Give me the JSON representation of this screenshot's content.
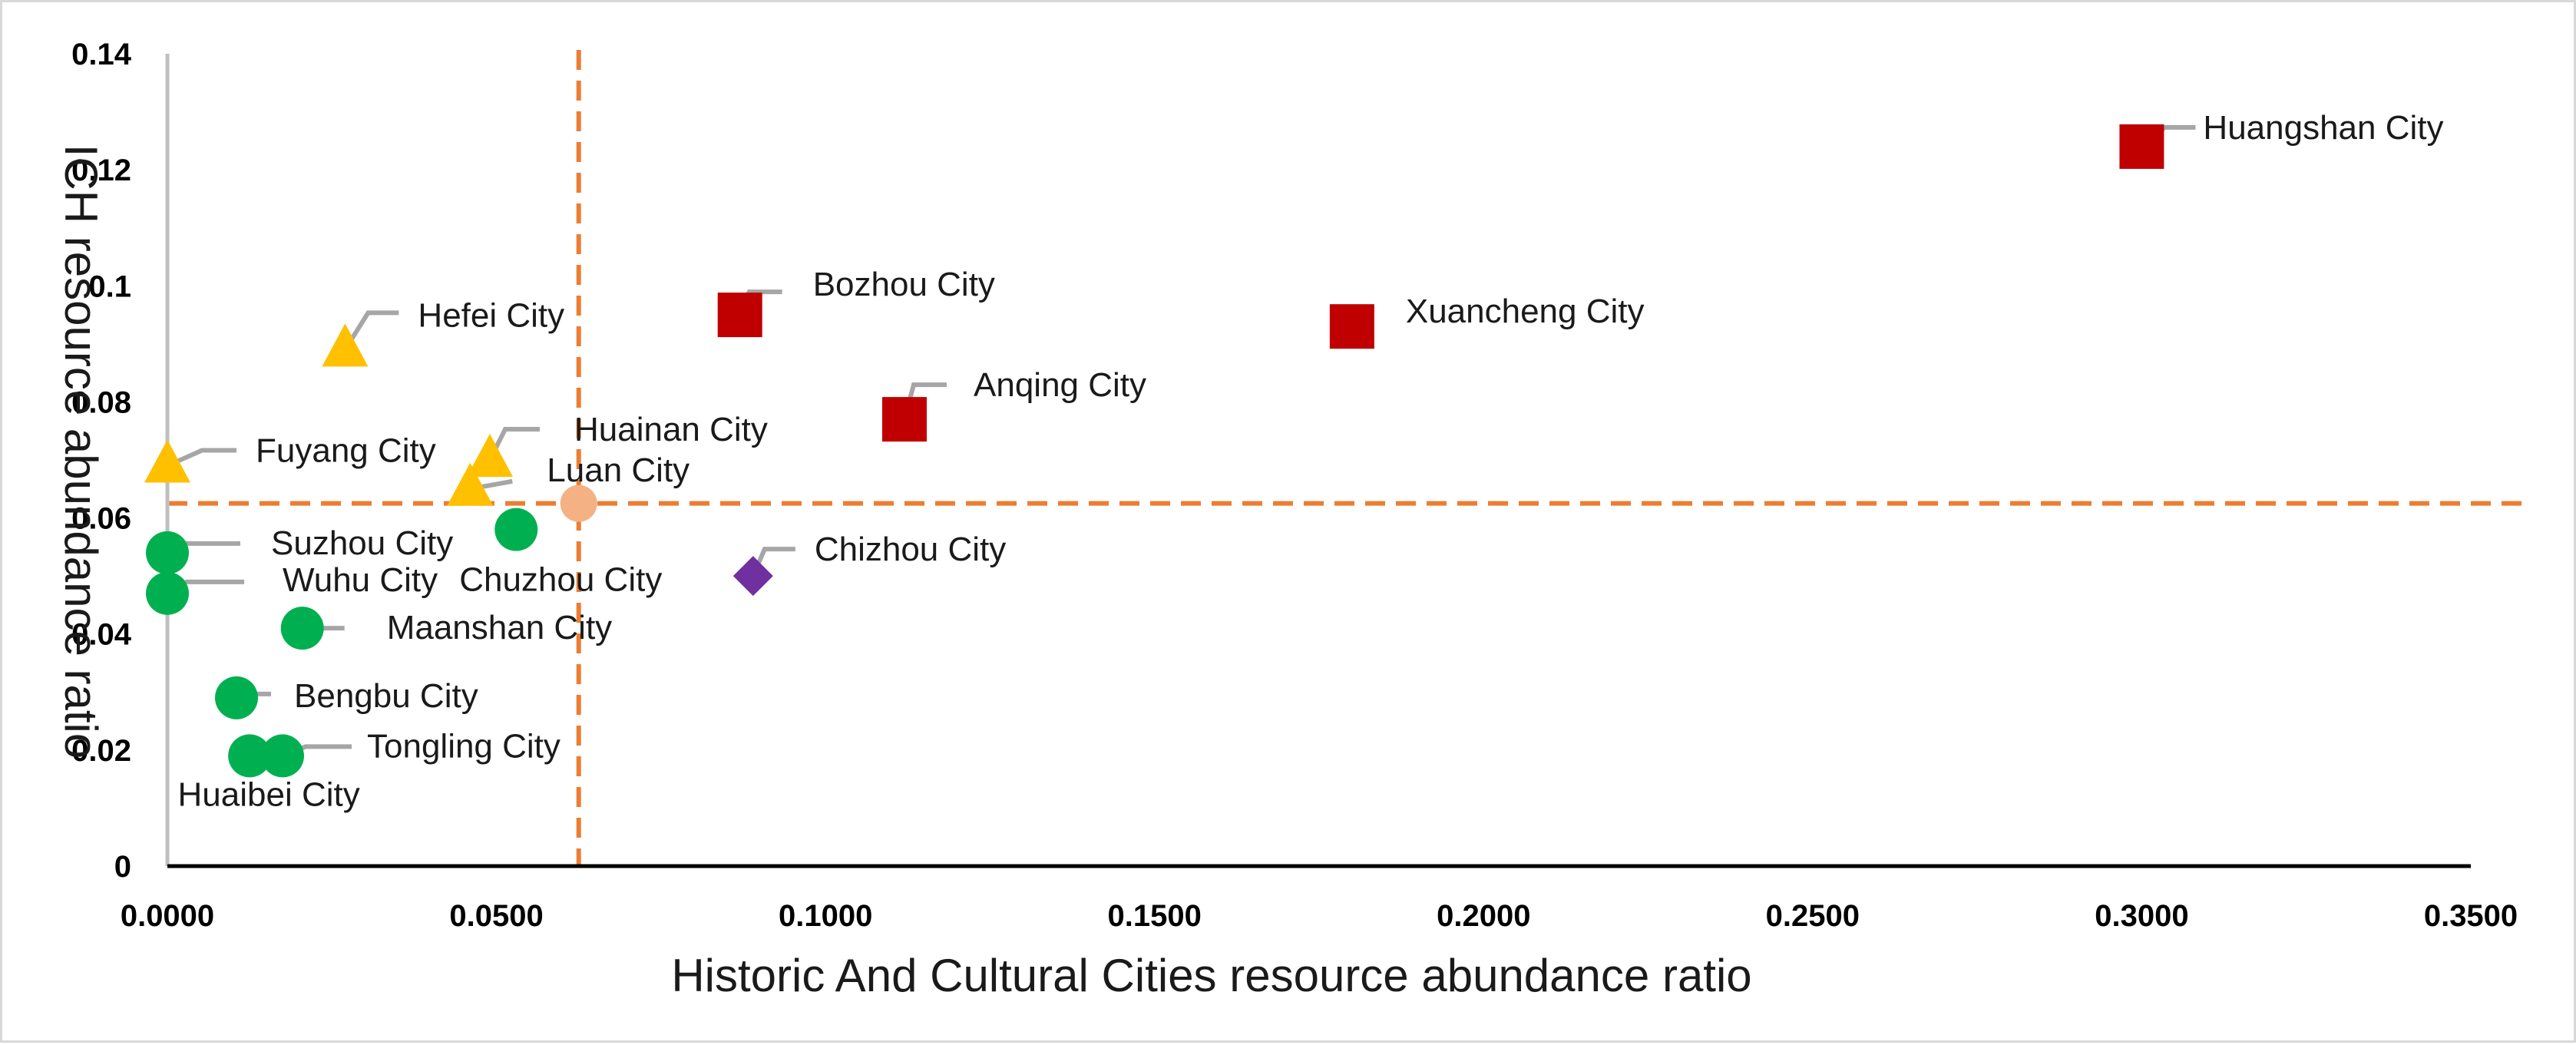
{
  "chart_data": {
    "type": "scatter",
    "title": "",
    "xlabel": "Historic And Cultural Cities resource abundance ratio",
    "ylabel": "ICH  resource abundance ratio",
    "xlim": [
      0,
      0.35
    ],
    "ylim": [
      0,
      0.14
    ],
    "x_ticks": [
      "0.0000",
      "0.0500",
      "0.1000",
      "0.1500",
      "0.2000",
      "0.2500",
      "0.3000",
      "0.3500"
    ],
    "y_ticks": [
      "0",
      "0.02",
      "0.04",
      "0.06",
      "0.08",
      "0.1",
      "0.12",
      "0.14"
    ],
    "grid": false,
    "legend": "none",
    "reference_lines": {
      "x": 0.0625,
      "y": 0.0625,
      "color": "#ed7d31",
      "style": "dashed"
    },
    "colors": {
      "square": "#c00000",
      "triangle": "#ffc000",
      "circle": "#00b050",
      "diamond": "#7030a0",
      "center": "#f4b183",
      "leader": "#a6a6a6"
    },
    "points": [
      {
        "label": "Huangshan City",
        "x": 0.3,
        "y": 0.124,
        "marker": "square"
      },
      {
        "label": "Xuancheng City",
        "x": 0.18,
        "y": 0.093,
        "marker": "square"
      },
      {
        "label": "Bozhou City",
        "x": 0.087,
        "y": 0.095,
        "marker": "square"
      },
      {
        "label": "Anqing City",
        "x": 0.112,
        "y": 0.077,
        "marker": "square"
      },
      {
        "label": "Hefei City",
        "x": 0.027,
        "y": 0.089,
        "marker": "triangle"
      },
      {
        "label": "Huainan City",
        "x": 0.049,
        "y": 0.07,
        "marker": "triangle"
      },
      {
        "label": "Fuyang City",
        "x": 0.0,
        "y": 0.069,
        "marker": "triangle"
      },
      {
        "label": "Luan City",
        "x": 0.046,
        "y": 0.065,
        "marker": "triangle"
      },
      {
        "label": "Chuzhou City",
        "x": 0.053,
        "y": 0.058,
        "marker": "circle"
      },
      {
        "label": "Suzhou City",
        "x": 0.0,
        "y": 0.054,
        "marker": "circle"
      },
      {
        "label": "Wuhu City",
        "x": 0.0,
        "y": 0.047,
        "marker": "circle"
      },
      {
        "label": "Maanshan City",
        "x": 0.0205,
        "y": 0.041,
        "marker": "circle"
      },
      {
        "label": "Bengbu City",
        "x": 0.0105,
        "y": 0.029,
        "marker": "circle"
      },
      {
        "label": "Tongling City",
        "x": 0.0175,
        "y": 0.019,
        "marker": "circle"
      },
      {
        "label": "Huaibei City",
        "x": 0.0125,
        "y": 0.019,
        "marker": "circle"
      },
      {
        "label": "Chizhou City",
        "x": 0.089,
        "y": 0.05,
        "marker": "diamond"
      }
    ],
    "center_point": {
      "x": 0.0625,
      "y": 0.0625,
      "marker": "circle"
    }
  }
}
